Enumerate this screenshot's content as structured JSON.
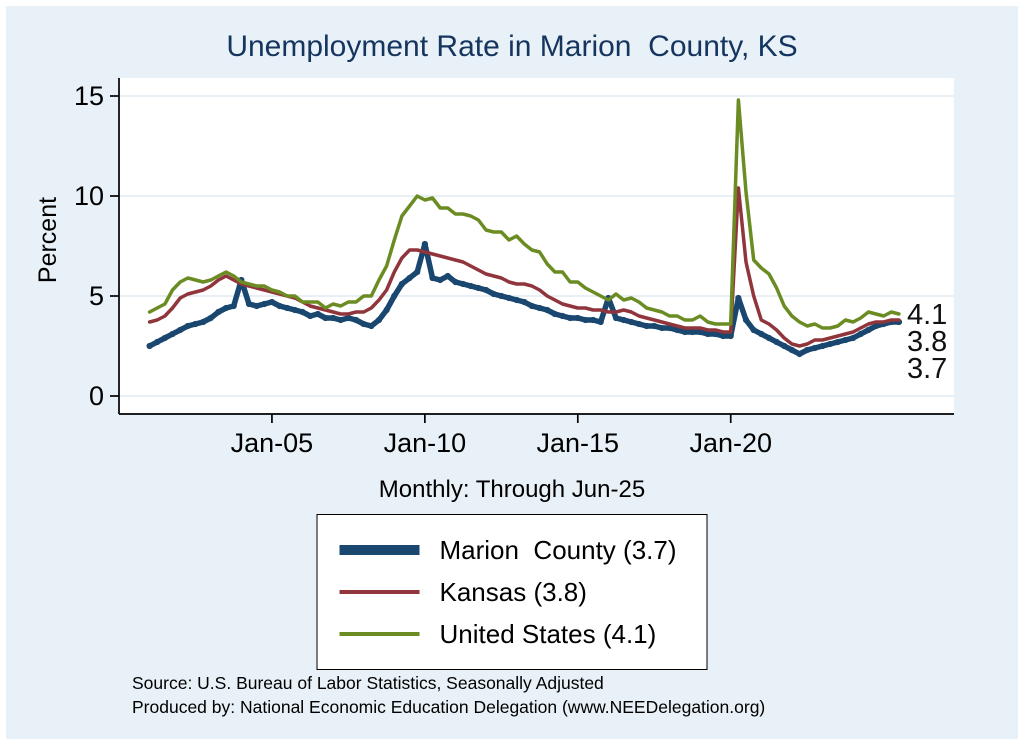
{
  "title": "Unemployment Rate in Marion  County, KS",
  "subtitle": "Monthly: Through Jun-25",
  "ylabel": "Percent",
  "notes": [
    "Source: U.S. Bureau of Labor Statistics, Seasonally Adjusted",
    "Produced by: National Economic Education Delegation (www.NEEDelegation.org)"
  ],
  "colors": {
    "background": "#e8f1f7",
    "title": "#15355f",
    "navy": "#1a476f",
    "maroon": "#90353b",
    "olive": "#6b8c23",
    "gridline": "#d9e7f1"
  },
  "legend": [
    {
      "label": "Marion  County (3.7)",
      "color": "#1a476f"
    },
    {
      "label": "Kansas (3.8)",
      "color": "#90353b"
    },
    {
      "label": "United States (4.1)",
      "color": "#6b8c23"
    }
  ],
  "end_labels": [
    "4.1",
    "3.8",
    "3.7"
  ],
  "chart_data": {
    "type": "line",
    "title": "Unemployment Rate in Marion  County, KS",
    "xlabel": "",
    "ylabel": "Percent",
    "ylim": [
      0,
      15
    ],
    "yticks": [
      0,
      5,
      10,
      15
    ],
    "xticks": [
      {
        "x": 2005,
        "label": "Jan-05"
      },
      {
        "x": 2010,
        "label": "Jan-10"
      },
      {
        "x": 2015,
        "label": "Jan-15"
      },
      {
        "x": 2020,
        "label": "Jan-20"
      }
    ],
    "x_range": [
      2000,
      2027.3
    ],
    "x_start": 2001,
    "x_step": 0.25,
    "frequency_note": "Monthly: Through Jun-25",
    "series": [
      {
        "name": "Marion County",
        "end_label": "3.7",
        "color": "#1a476f",
        "width": 5.5,
        "markers": true,
        "values": [
          2.5,
          2.7,
          2.9,
          3.1,
          3.3,
          3.5,
          3.6,
          3.7,
          3.9,
          4.2,
          4.4,
          4.5,
          5.8,
          4.6,
          4.5,
          4.6,
          4.7,
          4.5,
          4.4,
          4.3,
          4.2,
          4.0,
          4.1,
          3.9,
          3.9,
          3.8,
          3.9,
          3.8,
          3.6,
          3.5,
          3.8,
          4.3,
          5.0,
          5.6,
          5.9,
          6.2,
          7.6,
          5.9,
          5.8,
          6.0,
          5.7,
          5.6,
          5.5,
          5.4,
          5.3,
          5.1,
          5.0,
          4.9,
          4.8,
          4.7,
          4.5,
          4.4,
          4.3,
          4.1,
          4.0,
          3.9,
          3.9,
          3.8,
          3.8,
          3.7,
          4.9,
          3.9,
          3.8,
          3.7,
          3.6,
          3.5,
          3.5,
          3.4,
          3.4,
          3.3,
          3.2,
          3.2,
          3.2,
          3.1,
          3.1,
          3.0,
          3.0,
          4.9,
          3.8,
          3.3,
          3.1,
          2.9,
          2.7,
          2.5,
          2.3,
          2.1,
          2.3,
          2.4,
          2.5,
          2.6,
          2.7,
          2.8,
          2.9,
          3.1,
          3.3,
          3.5,
          3.6,
          3.7,
          3.7
        ]
      },
      {
        "name": "Kansas",
        "end_label": "3.8",
        "color": "#90353b",
        "width": 3.5,
        "markers": false,
        "values": [
          3.7,
          3.8,
          4.0,
          4.4,
          4.9,
          5.1,
          5.2,
          5.3,
          5.5,
          5.8,
          6.0,
          5.8,
          5.6,
          5.5,
          5.4,
          5.3,
          5.2,
          5.1,
          5.0,
          4.9,
          4.7,
          4.5,
          4.4,
          4.3,
          4.2,
          4.1,
          4.1,
          4.2,
          4.2,
          4.4,
          4.8,
          5.3,
          6.2,
          6.9,
          7.3,
          7.3,
          7.2,
          7.1,
          7.0,
          6.9,
          6.8,
          6.7,
          6.5,
          6.3,
          6.1,
          6.0,
          5.9,
          5.7,
          5.6,
          5.6,
          5.5,
          5.3,
          5.0,
          4.8,
          4.6,
          4.5,
          4.4,
          4.4,
          4.3,
          4.3,
          4.2,
          4.2,
          4.3,
          4.2,
          4.0,
          3.9,
          3.8,
          3.7,
          3.6,
          3.5,
          3.4,
          3.4,
          3.4,
          3.3,
          3.3,
          3.2,
          3.2,
          10.4,
          6.7,
          5.0,
          3.8,
          3.6,
          3.3,
          2.9,
          2.6,
          2.5,
          2.6,
          2.8,
          2.8,
          2.9,
          3.0,
          3.1,
          3.2,
          3.4,
          3.6,
          3.7,
          3.7,
          3.8,
          3.8
        ]
      },
      {
        "name": "United States",
        "end_label": "4.1",
        "color": "#6b8c23",
        "width": 3.5,
        "markers": false,
        "values": [
          4.2,
          4.4,
          4.6,
          5.3,
          5.7,
          5.9,
          5.8,
          5.7,
          5.8,
          6.0,
          6.2,
          6.0,
          5.7,
          5.6,
          5.5,
          5.5,
          5.3,
          5.2,
          5.0,
          5.0,
          4.7,
          4.7,
          4.7,
          4.4,
          4.6,
          4.5,
          4.7,
          4.7,
          5.0,
          5.0,
          5.8,
          6.5,
          7.8,
          9.0,
          9.5,
          10.0,
          9.8,
          9.9,
          9.4,
          9.4,
          9.1,
          9.1,
          9.0,
          8.8,
          8.3,
          8.2,
          8.2,
          7.8,
          8.0,
          7.6,
          7.3,
          7.2,
          6.6,
          6.2,
          6.2,
          5.7,
          5.7,
          5.4,
          5.2,
          5.0,
          4.8,
          5.1,
          4.8,
          4.9,
          4.7,
          4.4,
          4.3,
          4.2,
          4.0,
          4.0,
          3.8,
          3.8,
          4.0,
          3.7,
          3.6,
          3.6,
          3.6,
          14.8,
          10.2,
          6.8,
          6.4,
          6.1,
          5.4,
          4.5,
          4.0,
          3.7,
          3.5,
          3.6,
          3.4,
          3.4,
          3.5,
          3.8,
          3.7,
          3.9,
          4.2,
          4.1,
          4.0,
          4.2,
          4.1
        ]
      }
    ]
  }
}
